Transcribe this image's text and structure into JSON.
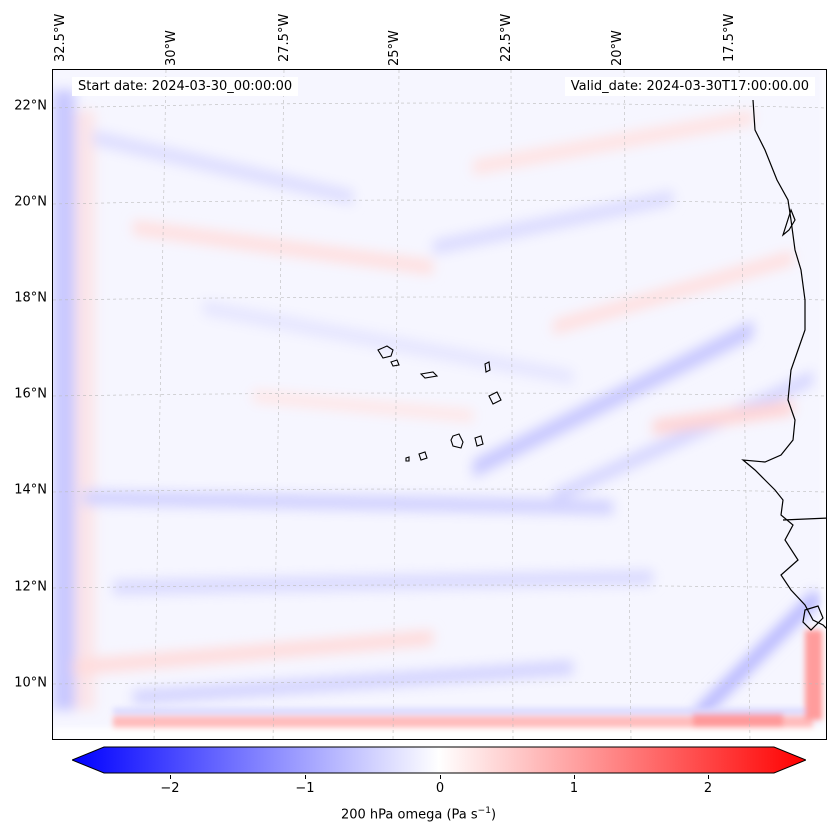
{
  "map": {
    "start_date": "Start date: 2024-03-30_00:00:00",
    "valid_date": "Valid_date: 2024-03-30T17:00:00.00",
    "lat_labels": [
      "22°N",
      "20°N",
      "18°N",
      "16°N",
      "14°N",
      "12°N",
      "10°N"
    ],
    "lon_labels": [
      "32.5°W",
      "30°W",
      "27.5°W",
      "25°W",
      "22.5°W",
      "20°W",
      "17.5°W"
    ],
    "colorbar_ticks": [
      "−2",
      "−1",
      "0",
      "1",
      "2"
    ],
    "colorbar_label": "200 hPa omega (Pa s",
    "colorbar_label_sup": "−1",
    "colorbar_label_end": ")",
    "colors": {
      "negative": "#0000ff",
      "neutral": "#ffffff",
      "positive": "#ff0000",
      "coastline": "#000000"
    }
  }
}
